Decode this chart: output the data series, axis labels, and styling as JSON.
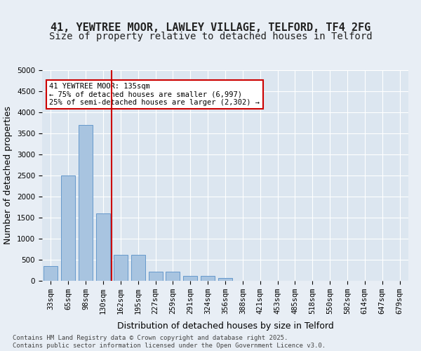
{
  "title_line1": "41, YEWTREE MOOR, LAWLEY VILLAGE, TELFORD, TF4 2FG",
  "title_line2": "Size of property relative to detached houses in Telford",
  "xlabel": "Distribution of detached houses by size in Telford",
  "ylabel": "Number of detached properties",
  "categories": [
    "33sqm",
    "65sqm",
    "98sqm",
    "130sqm",
    "162sqm",
    "195sqm",
    "227sqm",
    "259sqm",
    "291sqm",
    "324sqm",
    "356sqm",
    "388sqm",
    "421sqm",
    "453sqm",
    "485sqm",
    "518sqm",
    "550sqm",
    "582sqm",
    "614sqm",
    "647sqm",
    "679sqm"
  ],
  "values": [
    350,
    2500,
    3700,
    1600,
    620,
    620,
    220,
    220,
    120,
    120,
    60,
    0,
    0,
    0,
    0,
    0,
    0,
    0,
    0,
    0,
    0
  ],
  "bar_color": "#a8c4e0",
  "bar_edge_color": "#6699cc",
  "vline_x": 3.5,
  "vline_color": "#cc0000",
  "annotation_text": "41 YEWTREE MOOR: 135sqm\n← 75% of detached houses are smaller (6,997)\n25% of semi-detached houses are larger (2,302) →",
  "annotation_box_color": "#cc0000",
  "annotation_box_fill": "#ffffff",
  "ylim": [
    0,
    5000
  ],
  "yticks": [
    0,
    500,
    1000,
    1500,
    2000,
    2500,
    3000,
    3500,
    4000,
    4500,
    5000
  ],
  "background_color": "#e8eef5",
  "plot_background": "#dce6f0",
  "grid_color": "#ffffff",
  "footer": "Contains HM Land Registry data © Crown copyright and database right 2025.\nContains public sector information licensed under the Open Government Licence v3.0.",
  "title_fontsize": 11,
  "subtitle_fontsize": 10,
  "axis_label_fontsize": 9,
  "tick_fontsize": 7.5
}
